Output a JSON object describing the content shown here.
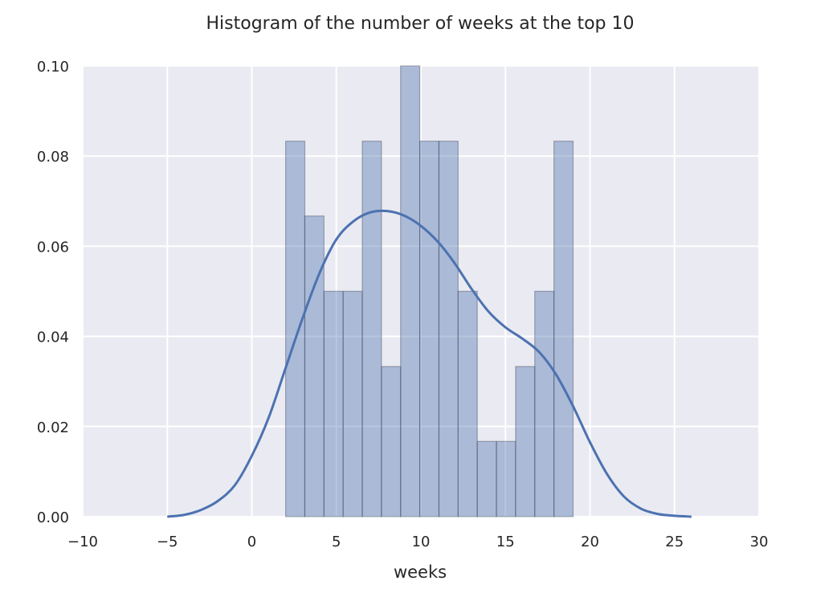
{
  "chart_data": {
    "type": "bar",
    "title": "Histogram of the number of weeks at the top 10",
    "xlabel": "weeks",
    "ylabel": "",
    "xlim": [
      -10,
      30
    ],
    "ylim": [
      0,
      0.1
    ],
    "xticks": [
      -10,
      -5,
      0,
      5,
      10,
      15,
      20,
      25,
      30
    ],
    "xtick_labels": [
      "−10",
      "−5",
      "0",
      "5",
      "10",
      "15",
      "20",
      "25",
      "30"
    ],
    "yticks": [
      0,
      0.02,
      0.04,
      0.06,
      0.08,
      0.1
    ],
    "ytick_labels": [
      "0.00",
      "0.02",
      "0.04",
      "0.06",
      "0.08",
      "0.10"
    ],
    "grid": true,
    "histogram": {
      "bin_edges": [
        2.0,
        3.133,
        4.267,
        5.4,
        6.533,
        7.667,
        8.8,
        9.933,
        11.067,
        12.2,
        13.333,
        14.467,
        15.6,
        16.733,
        17.867,
        19.0
      ],
      "density": [
        0.0833,
        0.0667,
        0.05,
        0.05,
        0.0833,
        0.0333,
        0.1,
        0.0833,
        0.0833,
        0.05,
        0.0167,
        0.0167,
        0.0333,
        0.05,
        0.0833
      ],
      "color": "#4c72b0",
      "alpha": 0.4
    },
    "kde": {
      "x": [
        -5,
        -4,
        -3,
        -2,
        -1,
        0,
        1,
        2,
        3,
        4,
        5,
        6,
        7,
        8,
        9,
        10,
        11,
        12,
        13,
        14,
        15,
        16,
        17,
        18,
        19,
        20,
        21,
        22,
        23,
        24,
        25,
        26
      ],
      "y": [
        0.0,
        0.0004,
        0.0015,
        0.0035,
        0.007,
        0.0135,
        0.022,
        0.033,
        0.044,
        0.054,
        0.0615,
        0.0655,
        0.0675,
        0.0678,
        0.0668,
        0.0645,
        0.061,
        0.0562,
        0.0505,
        0.0455,
        0.042,
        0.0395,
        0.0365,
        0.0315,
        0.0245,
        0.0165,
        0.0095,
        0.0045,
        0.0018,
        0.0006,
        0.0002,
        0.0
      ],
      "color": "#4c72b0"
    },
    "colors": {
      "plot_background": "#eaeaf2",
      "grid": "#ffffff",
      "text": "#262626",
      "bar_edge": "#3c4250"
    }
  }
}
